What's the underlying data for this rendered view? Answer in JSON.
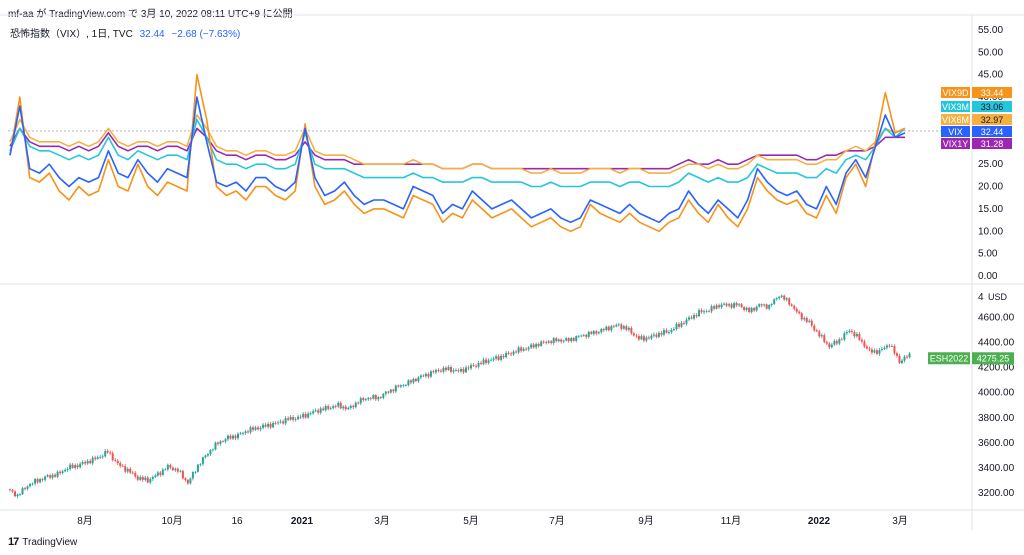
{
  "header": "mf-aa が TradingView.com で 3月 10, 2022 08:11 UTC+9 に公開",
  "legend": {
    "name": "恐怖指数（VIX）, 1日, TVC",
    "value": "32.44",
    "change": "−2.68 (−7.63%)"
  },
  "footer": {
    "logo": "17",
    "brand": "TradingView"
  },
  "colors": {
    "VIX9D": "#f7931a",
    "VIX3M": "#26c6da",
    "VIX6M": "#f5b041",
    "VIX": "#2962ff",
    "VIX1Y": "#9c27b0",
    "candle_up": "#26a69a",
    "candle_down": "#ef5350",
    "es_tag": "#4caf50"
  },
  "chart_data": [
    {
      "type": "line",
      "series": [
        {
          "name": "VIX9D",
          "value": "33.44",
          "values": [
            27,
            40,
            22,
            21,
            23,
            19,
            17,
            20,
            18,
            19,
            26,
            20,
            19,
            25,
            20,
            18,
            21,
            20,
            19,
            45,
            35,
            20,
            18,
            19,
            17,
            20,
            20,
            18,
            17,
            19,
            34,
            20,
            16,
            17,
            19,
            16,
            14,
            15,
            15,
            14,
            13,
            18,
            17,
            16,
            12,
            14,
            13,
            17,
            15,
            13,
            14,
            15,
            13,
            11,
            12,
            13,
            11,
            10,
            11,
            16,
            14,
            13,
            12,
            14,
            12,
            11,
            10,
            12,
            13,
            17,
            14,
            12,
            16,
            13,
            11,
            15,
            22,
            19,
            17,
            16,
            17,
            14,
            13,
            18,
            14,
            22,
            25,
            20,
            30,
            41,
            32,
            33
          ]
        },
        {
          "name": "VIX3M",
          "value": "33.06",
          "values": [
            28,
            33,
            29,
            28,
            28,
            27,
            26,
            27,
            26,
            27,
            31,
            27,
            26,
            28,
            27,
            26,
            27,
            27,
            26,
            35,
            31,
            26,
            25,
            25,
            24,
            25,
            25,
            24,
            24,
            25,
            32,
            25,
            24,
            24,
            24,
            23,
            22,
            22,
            22,
            22,
            22,
            23,
            22,
            22,
            21,
            21,
            21,
            22,
            22,
            21,
            21,
            21,
            21,
            20,
            20,
            21,
            20,
            20,
            20,
            21,
            21,
            21,
            20,
            21,
            21,
            20,
            20,
            20,
            21,
            23,
            22,
            21,
            22,
            21,
            21,
            22,
            25,
            24,
            23,
            23,
            23,
            22,
            22,
            24,
            23,
            26,
            27,
            26,
            29,
            33,
            31,
            33
          ]
        },
        {
          "name": "VIX6M",
          "value": "32.97",
          "values": [
            30,
            35,
            31,
            30,
            30,
            30,
            29,
            30,
            29,
            30,
            33,
            30,
            29,
            30,
            30,
            29,
            30,
            30,
            29,
            36,
            33,
            29,
            28,
            28,
            27,
            28,
            28,
            27,
            27,
            28,
            33,
            28,
            27,
            27,
            27,
            26,
            25,
            25,
            25,
            25,
            25,
            26,
            25,
            25,
            24,
            24,
            24,
            25,
            25,
            24,
            24,
            24,
            24,
            23,
            23,
            24,
            23,
            23,
            23,
            24,
            24,
            24,
            23,
            24,
            24,
            23,
            23,
            23,
            24,
            25,
            25,
            24,
            25,
            24,
            24,
            25,
            27,
            26,
            26,
            26,
            26,
            25,
            25,
            26,
            26,
            28,
            29,
            28,
            30,
            33,
            32,
            33
          ]
        },
        {
          "name": "VIX",
          "value": "32.44",
          "values": [
            27,
            38,
            24,
            23,
            25,
            22,
            20,
            22,
            21,
            22,
            28,
            23,
            22,
            26,
            23,
            21,
            24,
            23,
            22,
            40,
            30,
            21,
            20,
            21,
            19,
            22,
            22,
            20,
            19,
            21,
            33,
            22,
            18,
            19,
            21,
            18,
            16,
            17,
            17,
            16,
            15,
            20,
            19,
            18,
            14,
            16,
            15,
            19,
            17,
            15,
            16,
            17,
            15,
            13,
            14,
            15,
            13,
            12,
            13,
            17,
            16,
            15,
            14,
            16,
            14,
            13,
            12,
            14,
            15,
            19,
            16,
            14,
            17,
            15,
            13,
            17,
            24,
            21,
            19,
            18,
            19,
            16,
            15,
            20,
            16,
            23,
            26,
            22,
            29,
            36,
            31,
            32
          ]
        },
        {
          "name": "VIX1Y",
          "value": "31.28",
          "values": [
            29,
            33,
            30,
            29,
            29,
            29,
            28,
            29,
            28,
            29,
            32,
            29,
            28,
            29,
            29,
            28,
            29,
            29,
            28,
            33,
            31,
            28,
            27,
            27,
            26,
            27,
            27,
            26,
            26,
            27,
            30,
            27,
            26,
            26,
            26,
            25,
            25,
            25,
            25,
            25,
            25,
            25,
            25,
            25,
            24,
            24,
            24,
            25,
            25,
            24,
            24,
            24,
            24,
            24,
            24,
            24,
            24,
            24,
            24,
            24,
            24,
            24,
            24,
            24,
            24,
            24,
            24,
            24,
            25,
            26,
            25,
            25,
            26,
            25,
            25,
            26,
            27,
            27,
            27,
            27,
            27,
            26,
            26,
            27,
            27,
            28,
            28,
            28,
            29,
            31,
            31,
            31
          ]
        }
      ],
      "ylim": [
        0,
        55
      ],
      "yticks": [
        "55.00",
        "50.00",
        "45.00",
        "40.00",
        "35.00",
        "30.00",
        "25.00",
        "20.00",
        "15.00",
        "10.00",
        "5.00",
        "0.00"
      ],
      "ytick_values": [
        55,
        50,
        45,
        40,
        35,
        30,
        25,
        20,
        15,
        10,
        5,
        0
      ],
      "xlabels": [
        "8月",
        "10月",
        "16",
        "2021",
        "3月",
        "5月",
        "7月",
        "9月",
        "11月",
        "2022",
        "3月"
      ],
      "grid": false
    },
    {
      "type": "candlestick",
      "series_name": "ESH2022",
      "last_value": "4275.25",
      "unit": "USD",
      "ylim": [
        3080,
        4860
      ],
      "yticks": [
        "4600.00",
        "4400.00",
        "4200.00",
        "4000.00",
        "3800.00",
        "3600.00",
        "3400.00",
        "3200.00"
      ],
      "ytick_values": [
        4600,
        4400,
        4200,
        4000,
        3800,
        3600,
        3400,
        3200
      ],
      "top_tick": "4",
      "closes": [
        3230,
        3180,
        3260,
        3300,
        3330,
        3350,
        3400,
        3420,
        3450,
        3480,
        3530,
        3430,
        3380,
        3320,
        3300,
        3350,
        3410,
        3380,
        3280,
        3420,
        3520,
        3600,
        3640,
        3660,
        3700,
        3720,
        3740,
        3760,
        3790,
        3800,
        3830,
        3860,
        3880,
        3900,
        3870,
        3930,
        3960,
        3960,
        4010,
        4050,
        4080,
        4120,
        4150,
        4180,
        4190,
        4170,
        4200,
        4230,
        4260,
        4280,
        4310,
        4340,
        4360,
        4390,
        4410,
        4420,
        4420,
        4450,
        4470,
        4490,
        4520,
        4540,
        4500,
        4430,
        4440,
        4470,
        4490,
        4540,
        4590,
        4640,
        4660,
        4700,
        4700,
        4700,
        4650,
        4700,
        4690,
        4780,
        4720,
        4620,
        4560,
        4460,
        4370,
        4420,
        4500,
        4430,
        4330,
        4330,
        4390,
        4250,
        4300
      ]
    }
  ]
}
